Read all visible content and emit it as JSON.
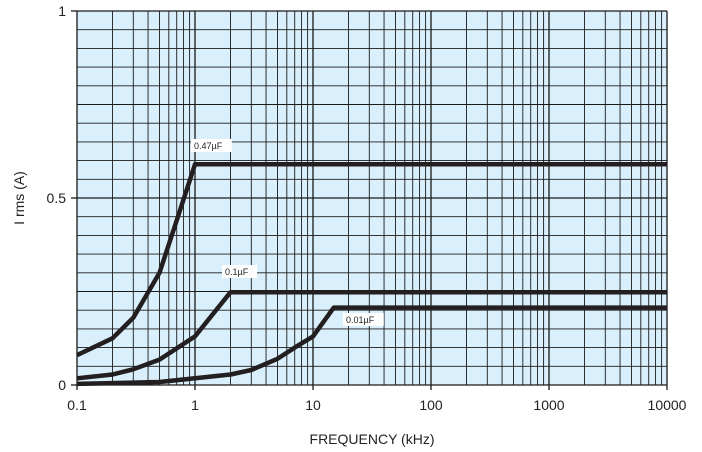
{
  "chart_data": {
    "type": "line",
    "xlabel": "FREQUENCY (kHz)",
    "ylabel": "I rms (A)",
    "x_scale": "log",
    "xlim": [
      0.1,
      10000
    ],
    "ylim": [
      0,
      1
    ],
    "x_ticks": [
      "0.1",
      "1",
      "10",
      "100",
      "1000",
      "10000"
    ],
    "y_ticks": [
      "0",
      "0.5",
      "1"
    ],
    "grid": true,
    "colors": {
      "plot_bg": "#d9effb",
      "grid": "#1a1a1a",
      "line": "#231f20",
      "label_bg": "#ffffff"
    },
    "series": [
      {
        "name": "0.47µF",
        "x": [
          0.1,
          0.2,
          0.3,
          0.5,
          0.7,
          1,
          10000
        ],
        "y": [
          0.08,
          0.125,
          0.18,
          0.3,
          0.44,
          0.59,
          0.59
        ]
      },
      {
        "name": "0.1µF",
        "x": [
          0.1,
          0.2,
          0.3,
          0.5,
          1,
          2,
          10000
        ],
        "y": [
          0.018,
          0.028,
          0.042,
          0.068,
          0.13,
          0.248,
          0.248
        ]
      },
      {
        "name": "0.01µF",
        "x": [
          0.1,
          0.5,
          1,
          2,
          3,
          5,
          7,
          10,
          15,
          10000
        ],
        "y": [
          0.003,
          0.008,
          0.018,
          0.028,
          0.04,
          0.07,
          0.1,
          0.13,
          0.207,
          0.207
        ]
      }
    ]
  }
}
